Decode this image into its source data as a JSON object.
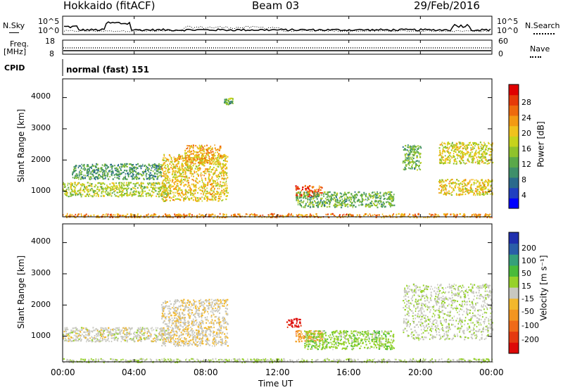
{
  "header": {
    "station": "Hokkaido (fitACF)",
    "beam": "Beam 03",
    "date": "29/Feb/2016"
  },
  "panels": {
    "nsky_label": "N.Sky",
    "nsky_ticks": [
      "10^5",
      "10^0"
    ],
    "nsearch_label": "N.Search",
    "nsearch_ticks": [
      "10^5",
      "10^0"
    ],
    "freq_label_1": "Freq.",
    "freq_label_2": "[MHz]",
    "freq_ticks": [
      "18",
      "8"
    ],
    "nave_label": "Nave",
    "nave_ticks": [
      "60",
      "0"
    ],
    "cpid_label": "CPID",
    "cpid_value": "normal (fast) 151"
  },
  "axes": {
    "ylabel": "Slant Range [km]",
    "xlabel": "Time UT",
    "xticks": [
      "00:00",
      "04:00",
      "08:00",
      "12:00",
      "16:00",
      "20:00",
      "00:00"
    ],
    "yticks": [
      "1000",
      "2000",
      "3000",
      "4000"
    ]
  },
  "colorbars": {
    "power_title": "Power [dB]",
    "power_ticks": [
      "28",
      "24",
      "20",
      "16",
      "12",
      "8",
      "4"
    ],
    "power_colors": [
      "#0000ff",
      "#2040c0",
      "#2a6a8c",
      "#3f8f6a",
      "#5aa84a",
      "#8fc22c",
      "#c6d31c",
      "#f0c21c",
      "#f39a12",
      "#ee6a0c",
      "#e63a08",
      "#e00000"
    ],
    "velocity_title": "Velocity [m s⁻¹]",
    "velocity_ticks": [
      "200",
      "100",
      "50",
      "15",
      "-15",
      "-50",
      "-100",
      "-200"
    ],
    "velocity_colors": [
      "#1f2fae",
      "#2a5ea8",
      "#36a07a",
      "#49bb3a",
      "#96d22a",
      "#c8c8c0",
      "#f2b82c",
      "#f39520",
      "#ef6a18",
      "#e43a10",
      "#dd0a08"
    ]
  },
  "chart_data": [
    {
      "type": "heatmap",
      "title": "Power [dB]",
      "xlabel": "Time UT",
      "ylabel": "Slant Range [km]",
      "xlim": [
        "00:00",
        "24:00"
      ],
      "ylim": [
        180,
        4600
      ],
      "colorbar_range": [
        0,
        32
      ],
      "regions": [
        {
          "t_start": 0.0,
          "t_end": 6.0,
          "range_km": [
            850,
            1300
          ],
          "power_db": 16
        },
        {
          "t_start": 0.5,
          "t_end": 5.5,
          "range_km": [
            1400,
            1900
          ],
          "power_db": 10
        },
        {
          "t_start": 5.5,
          "t_end": 9.2,
          "range_km": [
            700,
            2200
          ],
          "power_db": 20
        },
        {
          "t_start": 6.8,
          "t_end": 8.8,
          "range_km": [
            1900,
            2500
          ],
          "power_db": 22
        },
        {
          "t_start": 9.0,
          "t_end": 9.5,
          "range_km": [
            3800,
            4000
          ],
          "power_db": 12
        },
        {
          "t_start": 13.0,
          "t_end": 14.5,
          "range_km": [
            850,
            1200
          ],
          "power_db": 28
        },
        {
          "t_start": 13.0,
          "t_end": 18.5,
          "range_km": [
            500,
            1000
          ],
          "power_db": 12
        },
        {
          "t_start": 19.0,
          "t_end": 20.0,
          "range_km": [
            1700,
            2500
          ],
          "power_db": 12
        },
        {
          "t_start": 21.0,
          "t_end": 24.0,
          "range_km": [
            900,
            1400
          ],
          "power_db": 20
        },
        {
          "t_start": 21.0,
          "t_end": 24.0,
          "range_km": [
            1900,
            2600
          ],
          "power_db": 18
        },
        {
          "t_start": 0.0,
          "t_end": 24.0,
          "range_km": [
            180,
            300
          ],
          "power_db": 24
        }
      ]
    },
    {
      "type": "heatmap",
      "title": "Velocity [m s⁻¹]",
      "xlabel": "Time UT",
      "ylabel": "Slant Range [km]",
      "xlim": [
        "00:00",
        "24:00"
      ],
      "ylim": [
        180,
        4600
      ],
      "colorbar_range": [
        -200,
        200
      ],
      "regions": [
        {
          "t_start": 0.0,
          "t_end": 6.0,
          "range_km": [
            850,
            1300
          ],
          "velocity_ms": 0
        },
        {
          "t_start": 5.5,
          "t_end": 9.2,
          "range_km": [
            700,
            2200
          ],
          "velocity_ms": -10
        },
        {
          "t_start": 13.0,
          "t_end": 14.5,
          "range_km": [
            850,
            1200
          ],
          "velocity_ms": -80
        },
        {
          "t_start": 12.5,
          "t_end": 13.3,
          "range_km": [
            1300,
            1600
          ],
          "velocity_ms": -200
        },
        {
          "t_start": 13.5,
          "t_end": 18.5,
          "range_km": [
            600,
            1200
          ],
          "velocity_ms": 40
        },
        {
          "t_start": 19.0,
          "t_end": 24.0,
          "range_km": [
            900,
            2700
          ],
          "velocity_ms": 10
        },
        {
          "t_start": 0.0,
          "t_end": 24.0,
          "range_km": [
            180,
            300
          ],
          "velocity_ms": 15
        }
      ]
    }
  ]
}
